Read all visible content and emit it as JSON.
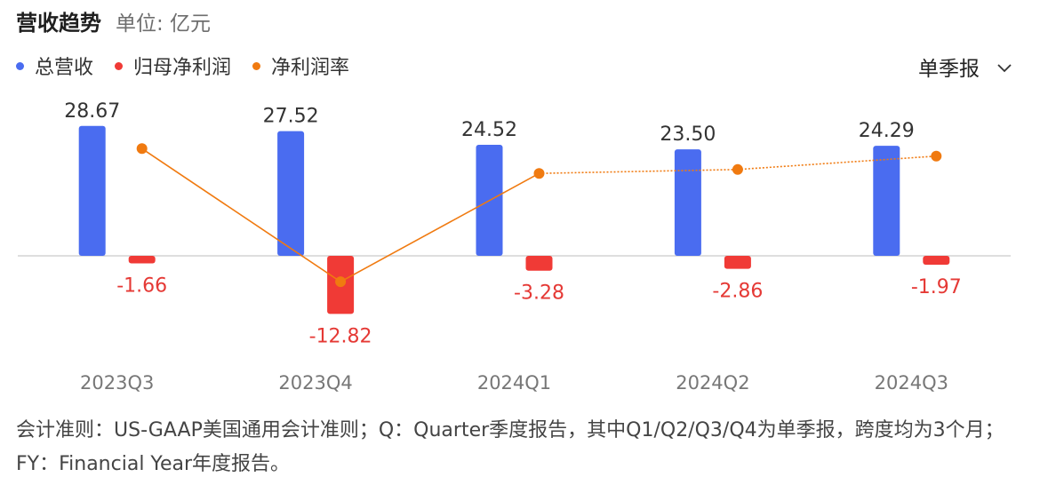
{
  "header": {
    "title": "营收趋势",
    "unit": "单位: 亿元"
  },
  "period_selector": {
    "label": "单季报"
  },
  "colors": {
    "revenue": "#4a6cf0",
    "net_profit": "#f03a36",
    "margin": "#f07a10",
    "axis": "#d4d4d4",
    "label_revenue": "#333333",
    "label_profit": "#e53935",
    "tick": "#777777"
  },
  "chart_data": {
    "type": "bar",
    "categories": [
      "2023Q3",
      "2023Q4",
      "2024Q1",
      "2024Q2",
      "2024Q3"
    ],
    "series": [
      {
        "name": "总营收",
        "kind": "bar",
        "values": [
          28.67,
          27.52,
          24.52,
          23.5,
          24.29
        ],
        "labels": [
          "28.67",
          "27.52",
          "24.52",
          "23.50",
          "24.29"
        ]
      },
      {
        "name": "归母净利润",
        "kind": "bar",
        "values": [
          -1.66,
          -12.82,
          -3.28,
          -2.86,
          -1.97
        ],
        "labels": [
          "-1.66",
          "-12.82",
          "-3.28",
          "-2.86",
          "-1.97"
        ]
      },
      {
        "name": "净利润率",
        "kind": "line",
        "unit": "%",
        "values": [
          -5.8,
          -46.6,
          -13.4,
          -12.2,
          -8.1
        ]
      }
    ],
    "ylim": [
      -15,
      31
    ],
    "margin_ylim": [
      -55,
      0
    ],
    "legend_position": "top-left",
    "grid": false
  },
  "footnote": "会计准则：US-GAAP美国通用会计准则；Q：Quarter季度报告，其中Q1/Q2/Q3/Q4为单季报，跨度均为3个月；FY：Financial Year年度报告。"
}
